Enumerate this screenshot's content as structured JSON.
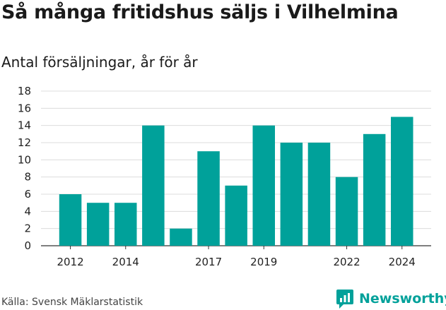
{
  "chart_data": {
    "type": "bar",
    "title": "Så många fritidshus säljs i Vilhelmina",
    "subtitle": "Antal försäljningar, år för år",
    "categories": [
      "2012",
      "2013",
      "2014",
      "2015",
      "2016",
      "2017",
      "2018",
      "2019",
      "2020",
      "2021",
      "2022",
      "2023",
      "2024"
    ],
    "values": [
      6,
      5,
      5,
      14,
      2,
      11,
      7,
      14,
      12,
      12,
      8,
      13,
      15
    ],
    "x_tick_labels": [
      "2012",
      "2014",
      "2017",
      "2019",
      "2022",
      "2024"
    ],
    "y_ticks": [
      0,
      2,
      4,
      6,
      8,
      10,
      12,
      14,
      16,
      18
    ],
    "ylim": [
      0,
      18
    ],
    "grid": true,
    "bar_color": "#00a19a"
  },
  "footer": {
    "source": "Källa: Svensk Mäklarstatistik",
    "brand": "Newsworthy"
  }
}
